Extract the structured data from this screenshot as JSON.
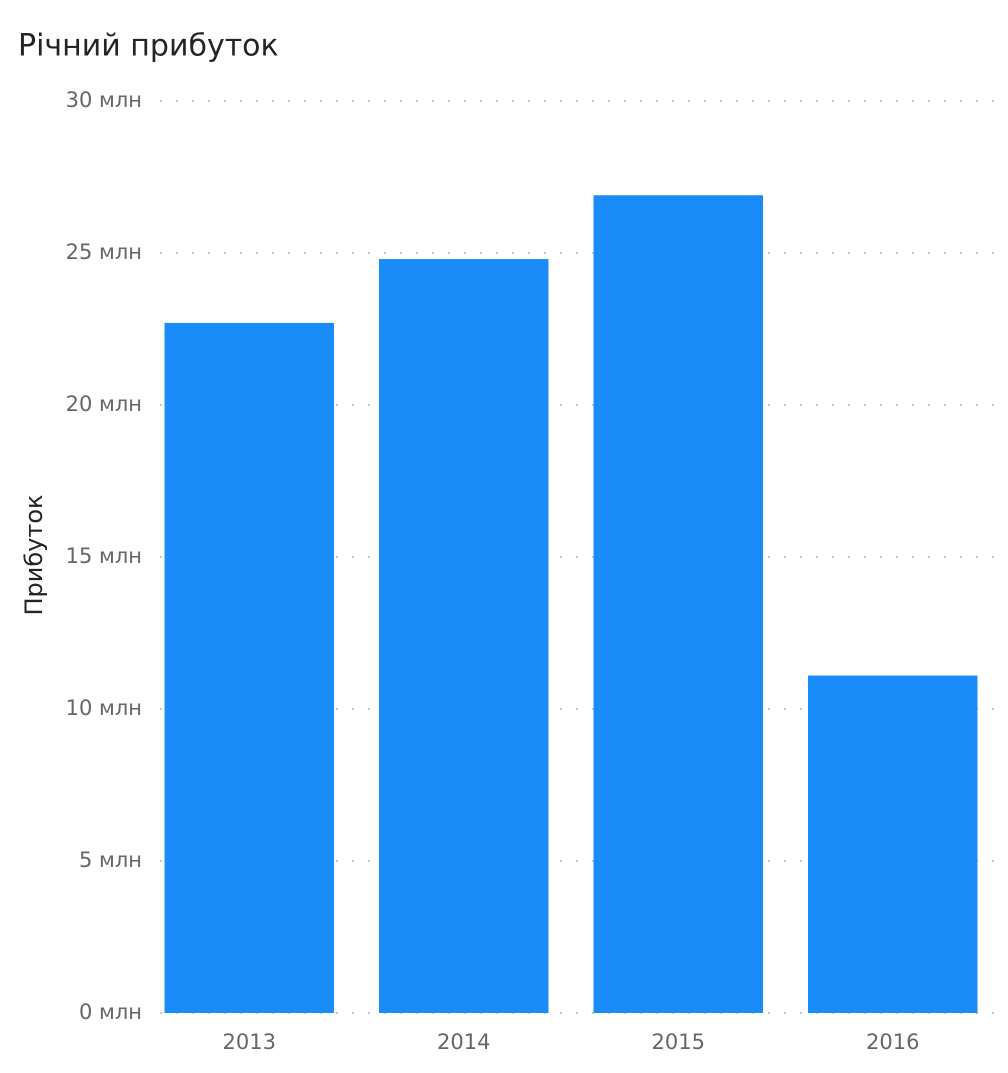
{
  "chart_data": {
    "type": "bar",
    "title": "Річний прибуток",
    "y_label": "Прибуток",
    "categories": [
      "2013",
      "2014",
      "2015",
      "2016"
    ],
    "values": [
      22.7,
      24.8,
      26.9,
      11.1
    ],
    "color": "#1a8cfa",
    "ylim": [
      0,
      30
    ],
    "yticks": [
      {
        "value": 0,
        "label": "0 млн"
      },
      {
        "value": 5,
        "label": "5 млн"
      },
      {
        "value": 10,
        "label": "10 млн"
      },
      {
        "value": 15,
        "label": "15 млн"
      },
      {
        "value": 20,
        "label": "20 млн"
      },
      {
        "value": 25,
        "label": "25 млн"
      },
      {
        "value": 30,
        "label": "30 млн"
      }
    ],
    "grid": true
  }
}
